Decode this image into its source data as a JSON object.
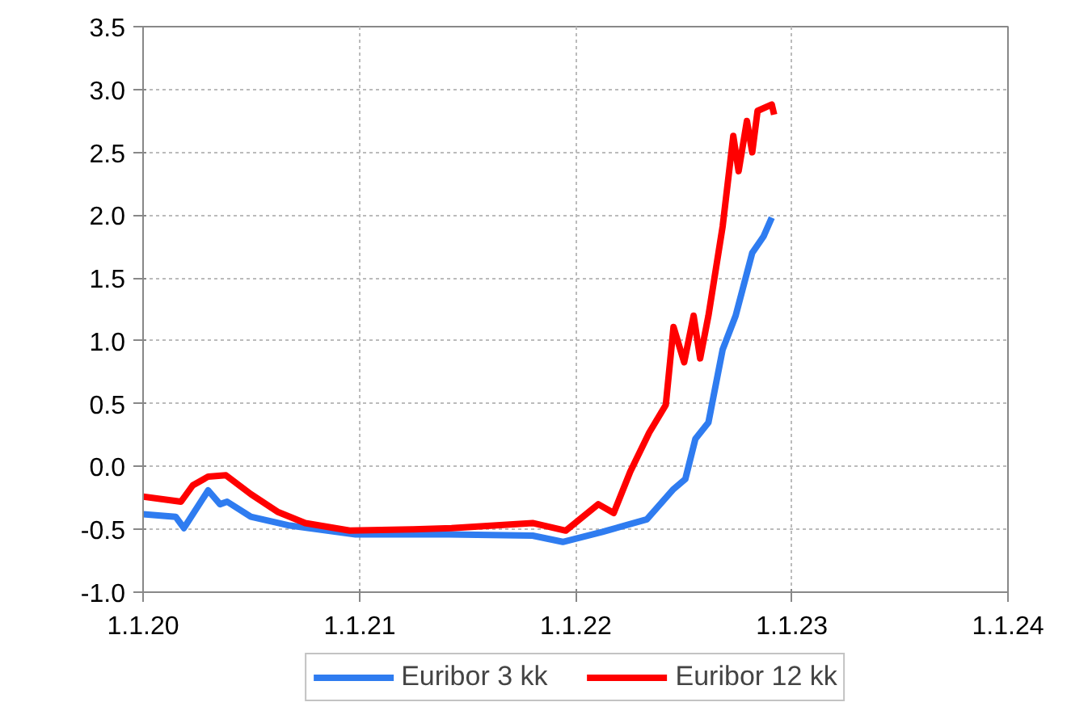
{
  "chart_data": {
    "type": "line",
    "legend": "bottom",
    "grid": true,
    "line_style": "solid",
    "marker": "none",
    "xlim": [
      "2020-01-01",
      "2024-01-01"
    ],
    "xticks": [
      {
        "value": "2020-01-01",
        "label": "1.1.20"
      },
      {
        "value": "2021-01-01",
        "label": "1.1.21"
      },
      {
        "value": "2022-01-01",
        "label": "1.1.22"
      },
      {
        "value": "2023-01-01",
        "label": "1.1.23"
      },
      {
        "value": "2024-01-01",
        "label": "1.1.24"
      }
    ],
    "ylim": [
      -1.0,
      3.5
    ],
    "yticks": [
      {
        "value": -1,
        "label": "-1.0"
      },
      {
        "value": -0.5,
        "label": "-0.5"
      },
      {
        "value": 0,
        "label": "0.0"
      },
      {
        "value": 0.5,
        "label": "0.5"
      },
      {
        "value": 1,
        "label": "1.0"
      },
      {
        "value": 1.5,
        "label": "1.5"
      },
      {
        "value": 2,
        "label": "2.0"
      },
      {
        "value": 2.5,
        "label": "2.5"
      },
      {
        "value": 3,
        "label": "3.0"
      },
      {
        "value": 3.5,
        "label": "3.5"
      }
    ],
    "series": [
      {
        "name": "Euribor 3 kk",
        "color": "#2f7cf0",
        "x": [
          "2020-01-01",
          "2020-02-25",
          "2020-03-10",
          "2020-04-20",
          "2020-05-10",
          "2020-05-22",
          "2020-07-01",
          "2020-09-05",
          "2020-12-25",
          "2021-06-01",
          "2021-10-20",
          "2021-12-10",
          "2022-02-15",
          "2022-05-01",
          "2022-06-15",
          "2022-07-05",
          "2022-07-22",
          "2022-08-13",
          "2022-09-06",
          "2022-09-28",
          "2022-10-26",
          "2022-11-14",
          "2022-11-28"
        ],
        "values": [
          -0.38,
          -0.4,
          -0.49,
          -0.19,
          -0.3,
          -0.28,
          -0.4,
          -0.47,
          -0.54,
          -0.54,
          -0.55,
          -0.6,
          -0.52,
          -0.42,
          -0.18,
          -0.1,
          0.22,
          0.35,
          0.93,
          1.2,
          1.7,
          1.83,
          1.98
        ]
      },
      {
        "name": "Euribor 12 kk",
        "color": "#ff0000",
        "x": [
          "2020-01-01",
          "2020-03-05",
          "2020-03-25",
          "2020-04-20",
          "2020-05-20",
          "2020-07-01",
          "2020-08-15",
          "2020-10-01",
          "2020-12-15",
          "2021-04-01",
          "2021-06-05",
          "2021-10-20",
          "2021-12-15",
          "2022-02-08",
          "2022-03-06",
          "2022-04-03",
          "2022-05-05",
          "2022-06-02",
          "2022-06-15",
          "2022-07-03",
          "2022-07-19",
          "2022-07-30",
          "2022-08-13",
          "2022-09-06",
          "2022-09-24",
          "2022-10-03",
          "2022-10-17",
          "2022-10-26",
          "2022-11-04",
          "2022-11-28",
          "2022-12-02"
        ],
        "values": [
          -0.24,
          -0.28,
          -0.15,
          -0.08,
          -0.07,
          -0.22,
          -0.36,
          -0.45,
          -0.51,
          -0.5,
          -0.49,
          -0.45,
          -0.51,
          -0.3,
          -0.37,
          -0.04,
          0.27,
          0.49,
          1.11,
          0.83,
          1.2,
          0.86,
          1.2,
          1.91,
          2.63,
          2.35,
          2.75,
          2.5,
          2.83,
          2.88,
          2.8
        ]
      }
    ]
  }
}
